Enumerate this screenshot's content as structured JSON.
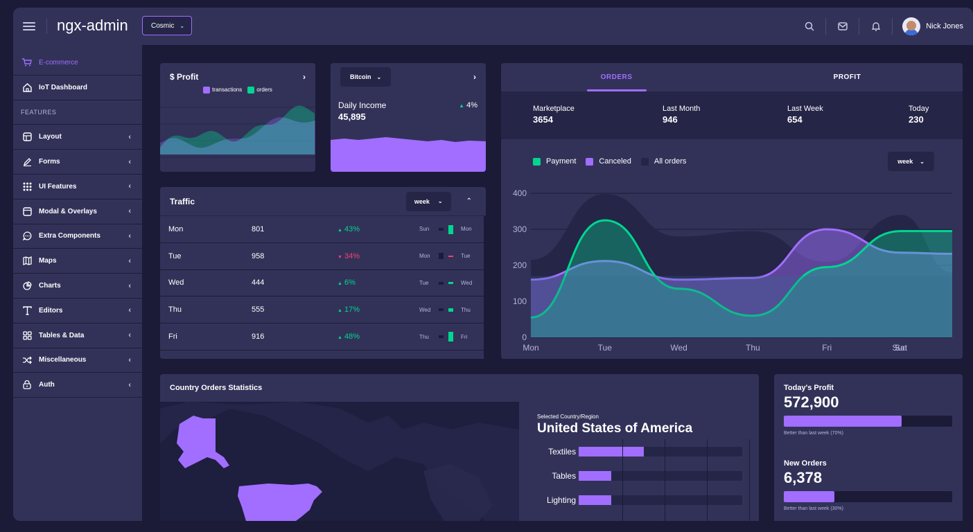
{
  "header": {
    "logo": "ngx-admin",
    "theme": "Cosmic",
    "user_name": "Nick Jones"
  },
  "sidebar": {
    "items": [
      {
        "label": "E-commerce",
        "icon": "cart-icon",
        "active": true
      },
      {
        "label": "IoT Dashboard",
        "icon": "home-icon"
      }
    ],
    "section_label": "FEATURES",
    "features": [
      {
        "label": "Layout",
        "icon": "layout-icon"
      },
      {
        "label": "Forms",
        "icon": "edit-icon"
      },
      {
        "label": "UI Features",
        "icon": "keypad-icon"
      },
      {
        "label": "Modal & Overlays",
        "icon": "browser-icon"
      },
      {
        "label": "Extra Components",
        "icon": "message-circle-icon"
      },
      {
        "label": "Maps",
        "icon": "map-icon"
      },
      {
        "label": "Charts",
        "icon": "pie-chart-icon"
      },
      {
        "label": "Editors",
        "icon": "text-icon"
      },
      {
        "label": "Tables & Data",
        "icon": "grid-icon"
      },
      {
        "label": "Miscellaneous",
        "icon": "shuffle-icon"
      },
      {
        "label": "Auth",
        "icon": "lock-icon"
      }
    ]
  },
  "profit_card": {
    "title": "$ Profit",
    "legend": [
      "transactions",
      "orders"
    ]
  },
  "income_card": {
    "currency": "Bitcoin",
    "label": "Daily Income",
    "value": "45,895",
    "delta": "4%"
  },
  "traffic": {
    "title": "Traffic",
    "period": "week",
    "rows": [
      {
        "day": "Mon",
        "value": "801",
        "delta": "43%",
        "dir": "up",
        "prev": "Sun",
        "cur": "Mon"
      },
      {
        "day": "Tue",
        "value": "958",
        "delta": "34%",
        "dir": "down",
        "prev": "Mon",
        "cur": "Tue"
      },
      {
        "day": "Wed",
        "value": "444",
        "delta": "6%",
        "dir": "up",
        "prev": "Tue",
        "cur": "Wed"
      },
      {
        "day": "Thu",
        "value": "555",
        "delta": "17%",
        "dir": "up",
        "prev": "Wed",
        "cur": "Thu"
      },
      {
        "day": "Fri",
        "value": "916",
        "delta": "48%",
        "dir": "up",
        "prev": "Thu",
        "cur": "Fri"
      }
    ]
  },
  "orders_card": {
    "tabs": [
      "ORDERS",
      "PROFIT"
    ],
    "stats": [
      {
        "label": "Marketplace",
        "value": "3654"
      },
      {
        "label": "Last Month",
        "value": "946"
      },
      {
        "label": "Last Week",
        "value": "654"
      },
      {
        "label": "Today",
        "value": "230"
      }
    ],
    "period": "week"
  },
  "chart_data": {
    "type": "area",
    "categories": [
      "Mon",
      "Tue",
      "Wed",
      "Thu",
      "Fri",
      "Sat",
      "Sun"
    ],
    "ylim": [
      0,
      400
    ],
    "yticks": [
      0,
      100,
      200,
      300,
      400
    ],
    "legend_position": "top-left",
    "series": [
      {
        "name": "Payment",
        "color": "#00d68f",
        "values": [
          55,
          325,
          135,
          60,
          195,
          295,
          295
        ]
      },
      {
        "name": "Canceled",
        "color": "#a16eff",
        "values": [
          160,
          212,
          160,
          165,
          300,
          235,
          232
        ]
      },
      {
        "name": "All orders",
        "color": "#252547",
        "values": [
          215,
          398,
          280,
          295,
          210,
          340,
          180
        ]
      }
    ]
  },
  "country_card": {
    "title": "Country Orders Statistics",
    "selected_label": "Selected Country/Region",
    "country": "United States of America",
    "bars": [
      {
        "label": "Textiles",
        "value": 0.4
      },
      {
        "label": "Tables",
        "value": 0.2
      },
      {
        "label": "Lighting",
        "value": 0.2
      }
    ]
  },
  "summary": [
    {
      "title": "Today's Profit",
      "value": "572,900",
      "progress": 0.7,
      "caption": "Better than last week (70%)"
    },
    {
      "title": "New Orders",
      "value": "6,378",
      "progress": 0.3,
      "caption": "Better than last week (30%)"
    }
  ]
}
